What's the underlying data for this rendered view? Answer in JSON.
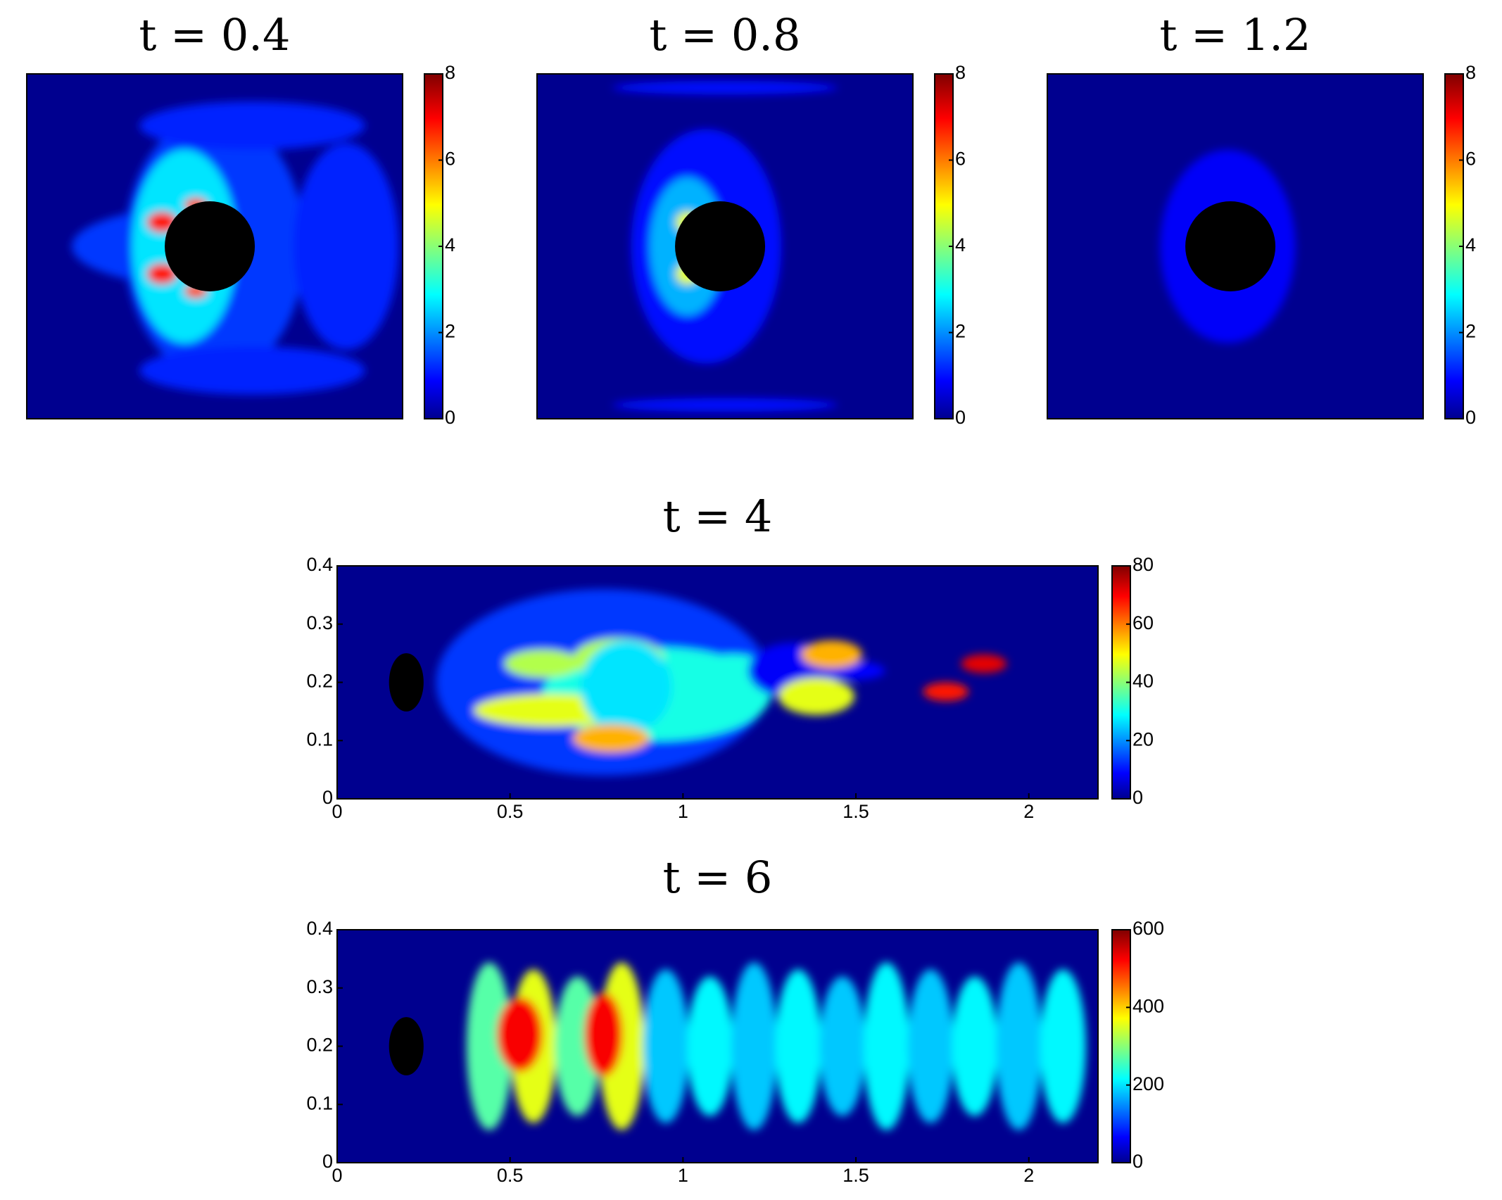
{
  "chart_data": [
    {
      "type": "contour",
      "title": "t = 0.4",
      "clim": [
        0,
        8
      ],
      "cticks": [
        0,
        2,
        4,
        6,
        8
      ]
    },
    {
      "type": "contour",
      "title": "t = 0.8",
      "clim": [
        0,
        8
      ],
      "cticks": [
        0,
        2,
        4,
        6,
        8
      ]
    },
    {
      "type": "contour",
      "title": "t = 1.2",
      "clim": [
        0,
        8
      ],
      "cticks": [
        0,
        2,
        4,
        6,
        8
      ]
    },
    {
      "type": "contour",
      "title": "t = 4",
      "xlim": [
        0,
        2.2
      ],
      "xticks": [
        0,
        0.5,
        1,
        1.5,
        2
      ],
      "ylim": [
        0,
        0.4
      ],
      "yticks": [
        0,
        0.1,
        0.2,
        0.3,
        0.4
      ],
      "clim": [
        0,
        80
      ],
      "cticks": [
        0,
        20,
        40,
        60,
        80
      ]
    },
    {
      "type": "contour",
      "title": "t = 6",
      "xlim": [
        0,
        2.2
      ],
      "xticks": [
        0,
        0.5,
        1,
        1.5,
        2
      ],
      "ylim": [
        0,
        0.4
      ],
      "yticks": [
        0,
        0.1,
        0.2,
        0.3,
        0.4
      ],
      "clim": [
        0,
        600
      ],
      "cticks": [
        0,
        200,
        400,
        600
      ]
    }
  ]
}
